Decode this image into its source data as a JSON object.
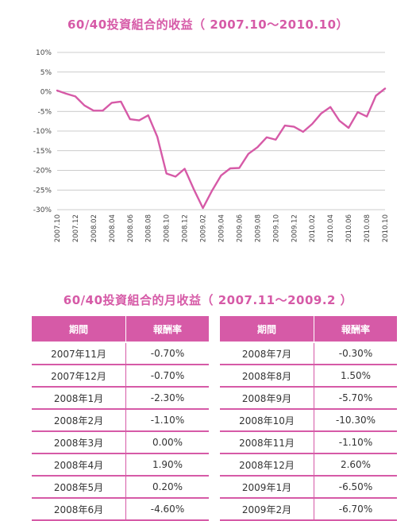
{
  "chart_title": "60/40投資組合的收益（ 2007.10～2010.10）",
  "table_title": "60/40投資組合的月收益（ 2007.11～2009.2 ）",
  "colors": {
    "accent": "#d65aa7",
    "line": "#d65aa7",
    "grid": "#bbbbbb"
  },
  "chart_data": {
    "type": "line",
    "title": "60/40投資組合的收益（ 2007.10～2010.10）",
    "xlabel": "",
    "ylabel": "",
    "ylim": [
      -30,
      10
    ],
    "y_ticks": [
      "10%",
      "5%",
      "0%",
      "-5%",
      "-10%",
      "-15%",
      "-20%",
      "-25%",
      "-30%"
    ],
    "y_tick_values": [
      10,
      5,
      0,
      -5,
      -10,
      -15,
      -20,
      -25,
      -30
    ],
    "x_tick_labels": [
      "2007.10",
      "2007.12",
      "2008.02",
      "2008.04",
      "2008.06",
      "2008.08",
      "2008.10",
      "2008.12",
      "2009.02",
      "2009.04",
      "2009.06",
      "2009.08",
      "2009.10",
      "2009.12",
      "2010.02",
      "2010.04",
      "2010.06",
      "2010.08",
      "2010.10"
    ],
    "grid": true,
    "series": [
      {
        "x": [
          "2007.10",
          "2007.11",
          "2007.12",
          "2008.01",
          "2008.02",
          "2008.03",
          "2008.04",
          "2008.05",
          "2008.06",
          "2008.07",
          "2008.08",
          "2008.09",
          "2008.10",
          "2008.11",
          "2008.12",
          "2009.01",
          "2009.02",
          "2009.03",
          "2009.04",
          "2009.05",
          "2009.06",
          "2009.07",
          "2009.08",
          "2009.09",
          "2009.10",
          "2009.11",
          "2009.12",
          "2010.01",
          "2010.02",
          "2010.03",
          "2010.04",
          "2010.05",
          "2010.06",
          "2010.07",
          "2010.08",
          "2010.09",
          "2010.10"
        ],
        "values": [
          0.3,
          -0.5,
          -1.2,
          -3.5,
          -4.8,
          -4.8,
          -2.8,
          -2.5,
          -7.0,
          -7.3,
          -6.0,
          -11.5,
          -20.8,
          -21.6,
          -19.6,
          -24.8,
          -29.6,
          -25.2,
          -21.3,
          -19.5,
          -19.4,
          -15.8,
          -14.1,
          -11.6,
          -12.2,
          -8.6,
          -8.9,
          -10.2,
          -8.2,
          -5.5,
          -3.9,
          -7.4,
          -9.2,
          -5.2,
          -6.3,
          -1.0,
          0.8
        ]
      }
    ]
  },
  "table": {
    "headers": {
      "period": "期間",
      "return": "報酬率"
    },
    "left": [
      {
        "period": "2007年11月",
        "return": "-0.70%"
      },
      {
        "period": "2007年12月",
        "return": "-0.70%"
      },
      {
        "period": "2008年1月",
        "return": "-2.30%"
      },
      {
        "period": "2008年2月",
        "return": "-1.10%"
      },
      {
        "period": "2008年3月",
        "return": "0.00%"
      },
      {
        "period": "2008年4月",
        "return": "1.90%"
      },
      {
        "period": "2008年5月",
        "return": "0.20%"
      },
      {
        "period": "2008年6月",
        "return": "-4.60%"
      }
    ],
    "right": [
      {
        "period": "2008年7月",
        "return": "-0.30%"
      },
      {
        "period": "2008年8月",
        "return": "1.50%"
      },
      {
        "period": "2008年9月",
        "return": "-5.70%"
      },
      {
        "period": "2008年10月",
        "return": "-10.30%"
      },
      {
        "period": "2008年11月",
        "return": "-1.10%"
      },
      {
        "period": "2008年12月",
        "return": "2.60%"
      },
      {
        "period": "2009年1月",
        "return": "-6.50%"
      },
      {
        "period": "2009年2月",
        "return": "-6.70%"
      }
    ]
  }
}
